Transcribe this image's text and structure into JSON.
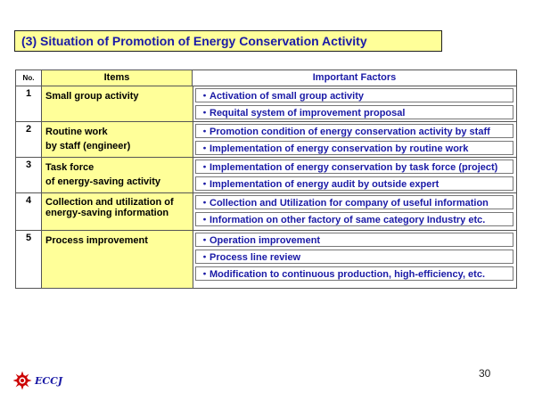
{
  "title": "(3) Situation of Promotion of Energy Conservation Activity",
  "table": {
    "headers": {
      "no": "No.",
      "items": "Items",
      "factors": "Important Factors"
    },
    "rows": [
      {
        "no": "1",
        "item": "Small group activity",
        "factors": [
          "・Activation of small group activity",
          "・Requital system of improvement proposal"
        ]
      },
      {
        "no": "2",
        "item": "Routine work\nby staff (engineer)",
        "factors": [
          "・Promotion condition of energy conservation activity by staff",
          "・Implementation of energy conservation by routine work"
        ]
      },
      {
        "no": "3",
        "item": "Task force\nof energy-saving activity",
        "factors": [
          "・Implementation of energy conservation by task force (project)",
          "・Implementation of energy audit by outside expert"
        ]
      },
      {
        "no": "4",
        "item": "Collection and utilization of\nenergy-saving information",
        "factors": [
          "・Collection and Utilization for company of useful information",
          "・Information on other factory of same category Industry etc."
        ]
      },
      {
        "no": "5",
        "item": "Process improvement",
        "factors": [
          "・Operation improvement",
          "・Process line review",
          "・Modification to continuous production, high-efficiency, etc."
        ]
      }
    ]
  },
  "page_number": "30",
  "logo": {
    "icon": "eccj-logo-icon",
    "text": "ECCJ",
    "color": "#cc0000"
  },
  "colors": {
    "highlight": "#ffff99",
    "text_blue": "#1a1aa6"
  }
}
